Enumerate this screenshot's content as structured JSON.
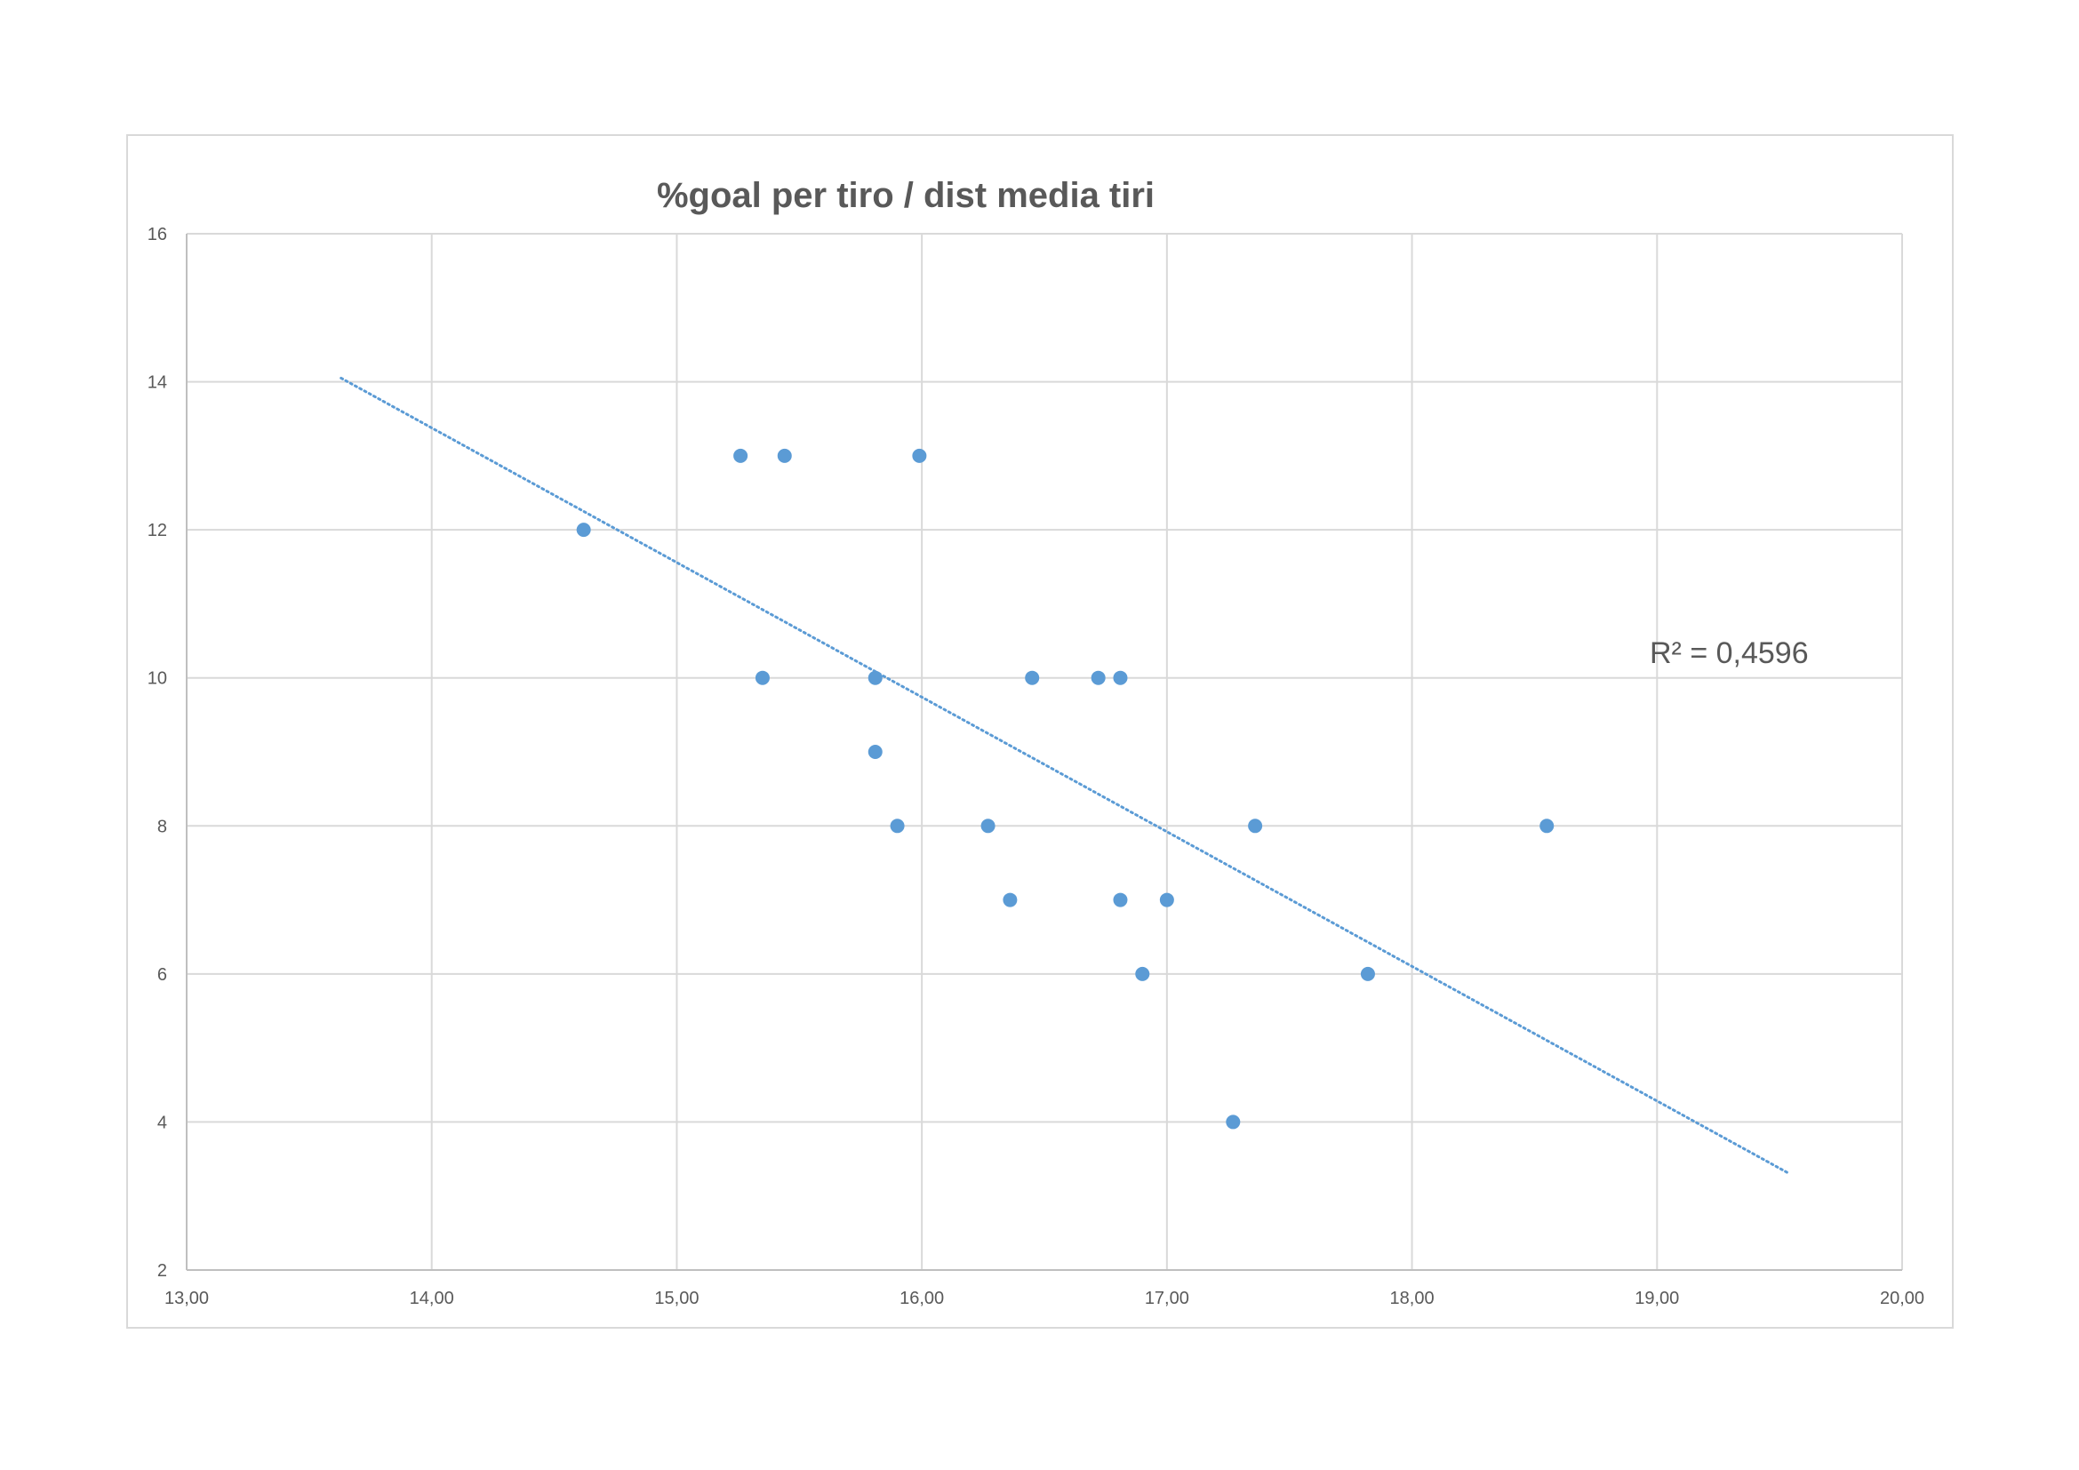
{
  "chart_data": {
    "type": "scatter",
    "title": "%goal per tiro / dist media tiri",
    "xlabel": "",
    "ylabel": "",
    "xlim": [
      13,
      20
    ],
    "ylim": [
      2,
      16
    ],
    "x_ticks": [
      13,
      14,
      15,
      16,
      17,
      18,
      19,
      20
    ],
    "x_tick_labels": [
      "13,00",
      "14,00",
      "15,00",
      "16,00",
      "17,00",
      "18,00",
      "19,00",
      "20,00"
    ],
    "y_ticks": [
      2,
      4,
      6,
      8,
      10,
      12,
      14,
      16
    ],
    "y_tick_labels": [
      "2",
      "4",
      "6",
      "8",
      "10",
      "12",
      "14",
      "16"
    ],
    "grid": true,
    "legend": "none",
    "series": [
      {
        "color": "#5b9bd5",
        "points": [
          {
            "x": 14.62,
            "y": 12
          },
          {
            "x": 15.26,
            "y": 13
          },
          {
            "x": 15.44,
            "y": 13
          },
          {
            "x": 15.99,
            "y": 13
          },
          {
            "x": 15.35,
            "y": 10
          },
          {
            "x": 15.81,
            "y": 10
          },
          {
            "x": 15.81,
            "y": 9
          },
          {
            "x": 15.9,
            "y": 8
          },
          {
            "x": 16.27,
            "y": 8
          },
          {
            "x": 16.36,
            "y": 7
          },
          {
            "x": 16.45,
            "y": 10
          },
          {
            "x": 16.72,
            "y": 10
          },
          {
            "x": 16.81,
            "y": 10
          },
          {
            "x": 16.81,
            "y": 7
          },
          {
            "x": 16.9,
            "y": 6
          },
          {
            "x": 17.0,
            "y": 7
          },
          {
            "x": 17.27,
            "y": 4
          },
          {
            "x": 17.36,
            "y": 8
          },
          {
            "x": 17.82,
            "y": 6
          },
          {
            "x": 18.55,
            "y": 8
          }
        ]
      }
    ],
    "trendline": {
      "type": "linear",
      "style": "dotted",
      "color": "#5b9bd5",
      "start": {
        "x": 13.63,
        "y": 14.05
      },
      "end": {
        "x": 19.53,
        "y": 3.32
      }
    },
    "annotations": [
      {
        "text": "R² = 0,4596",
        "x": 18.97,
        "y": 10.2
      }
    ]
  }
}
